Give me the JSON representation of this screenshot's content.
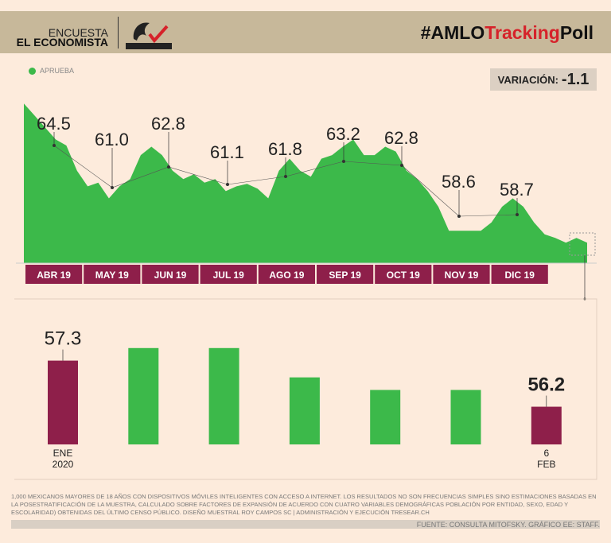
{
  "header": {
    "encuesta": "ENCUESTA",
    "publisher": "EL ECONOMISTA",
    "logo_text": "CONSULTA MITOFSKY",
    "title_part1": "#AMLO",
    "title_part2": "Tracking",
    "title_part3": "Poll"
  },
  "colors": {
    "approve": "#3cb94a",
    "month_band": "#8e1f4a",
    "accent_red": "#d6222a"
  },
  "variation": {
    "label": "VARIACIÓN:",
    "value": "-1.1"
  },
  "chart_data": [
    {
      "type": "area",
      "legend": [
        "APRUEBA"
      ],
      "months": [
        "ABR 19",
        "MAY 19",
        "JUN 19",
        "JUL 19",
        "AGO 19",
        "SEP 19",
        "OCT 19",
        "NOV 19",
        "DIC 19"
      ],
      "values": [
        68.0,
        67.0,
        66.0,
        65.0,
        64.5,
        62.4,
        61.1,
        61.4,
        60.1,
        61.1,
        61.7,
        63.7,
        64.4,
        63.7,
        62.4,
        61.7,
        62.1,
        61.4,
        61.7,
        60.7,
        61.1,
        61.3,
        60.9,
        60.1,
        62.4,
        63.4,
        62.4,
        61.9,
        63.4,
        63.7,
        64.4,
        65.0,
        63.7,
        63.7,
        64.4,
        64.0,
        62.4,
        61.7,
        60.7,
        59.4,
        57.4,
        57.4,
        57.4,
        57.4,
        58.1,
        59.4,
        60.1,
        59.4,
        58.1,
        57.1,
        56.8,
        56.4,
        56.8,
        56.4
      ],
      "annotations": [
        {
          "month": "ABR 19",
          "label": "64.5"
        },
        {
          "month": "MAY 19",
          "label": "61.0"
        },
        {
          "month": "JUN 19",
          "label": "62.8"
        },
        {
          "month": "JUL 19",
          "label": "61.1"
        },
        {
          "month": "AGO 19",
          "label": "61.8"
        },
        {
          "month": "SEP 19",
          "label": "63.2"
        },
        {
          "month": "OCT 19",
          "label": "62.8"
        },
        {
          "month": "NOV 19",
          "label": "58.6"
        },
        {
          "month": "DIC 19",
          "label": "58.7"
        }
      ],
      "ylim": [
        54.7,
        69
      ]
    },
    {
      "type": "bar",
      "categories": [
        [
          "ENE",
          "2020"
        ],
        [
          "",
          ""
        ],
        [
          "",
          ""
        ],
        [
          "",
          ""
        ],
        [
          "",
          ""
        ],
        [
          "",
          ""
        ],
        [
          "6",
          "FEB"
        ]
      ],
      "values": [
        57.3,
        57.6,
        57.6,
        56.9,
        56.6,
        56.6,
        56.2
      ],
      "labels": [
        "57.3",
        "",
        "",
        "",
        "",
        "",
        "56.2"
      ],
      "highlight": [
        0,
        6
      ],
      "ylim": [
        55.3,
        58
      ]
    }
  ],
  "footer": {
    "note": "1,000 MEXICANOS MAYORES DE 18 AÑOS CON DISPOSITIVOS MÓVILES INTELIGENTES CON ACCESO A INTERNET. LOS RESULTADOS NO SON FRECUENCIAS SIMPLES SINO ESTIMACIONES BASADAS EN LA POSESTRATIFICACIÓN DE LA MUESTRA, CALCULADO SOBRE FACTORES DE EXPANSIÓN DE ACUERDO CON CUATRO VARIABLES DEMOGRÁFICAS POBLACIÓN POR ENTIDAD, SEXO, EDAD Y ESCOLARIDAD) OBTENIDAS DEL ÚLTIMO CENSO PÚBLICO. DISEÑO MUESTRAL ROY CAMPOS SC | ADMINISTRACIÓN Y EJECUCIÓN TRESEAR.CH",
    "source": "FUENTE: CONSULTA MITOFSKY. GRÁFICO EE: STAFF."
  }
}
